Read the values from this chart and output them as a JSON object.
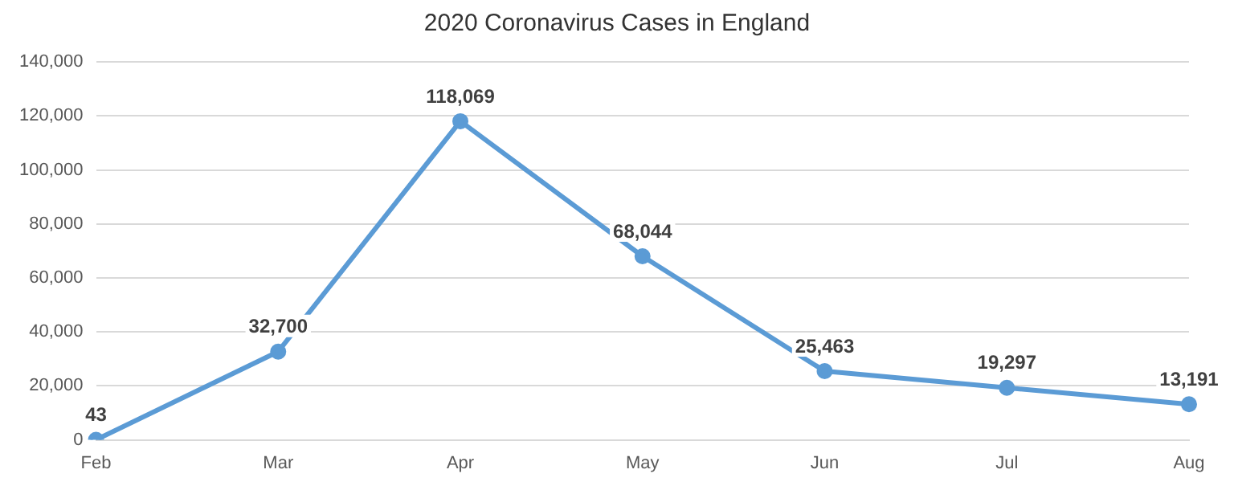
{
  "chart_data": {
    "type": "line",
    "title": "2020 Coronavirus Cases in England",
    "categories": [
      "Feb",
      "Mar",
      "Apr",
      "May",
      "Jun",
      "Jul",
      "Aug"
    ],
    "series": [
      {
        "color": "#5b9bd5",
        "values": [
          43,
          32700,
          118069,
          68044,
          25463,
          19297,
          13191
        ],
        "value_labels": [
          "43",
          "32,700",
          "118,069",
          "68,044",
          "25,463",
          "19,297",
          "13,191"
        ]
      }
    ],
    "ylim": [
      0,
      140000
    ],
    "yticks": [
      {
        "value": 0,
        "label": "0"
      },
      {
        "value": 20000,
        "label": "20,000"
      },
      {
        "value": 40000,
        "label": "40,000"
      },
      {
        "value": 60000,
        "label": "60,000"
      },
      {
        "value": 80000,
        "label": "80,000"
      },
      {
        "value": 100000,
        "label": "100,000"
      },
      {
        "value": 120000,
        "label": "120,000"
      },
      {
        "value": 140000,
        "label": "140,000"
      }
    ],
    "grid": "y",
    "legend": false,
    "marker": "circle",
    "line_style": "solid"
  }
}
